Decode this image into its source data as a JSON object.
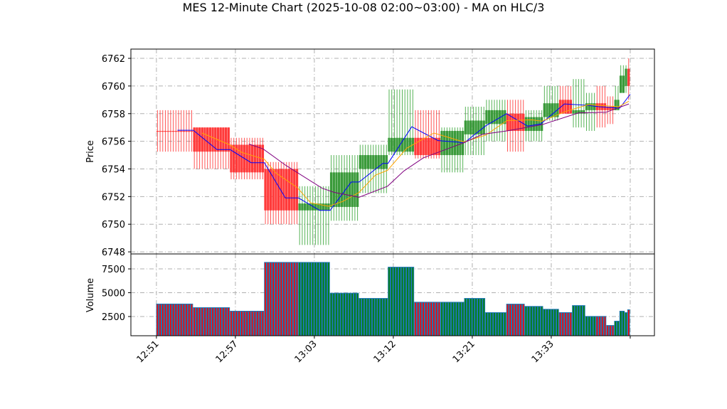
{
  "chart_data": {
    "type": "candlestick",
    "title": "MES 12-Minute Chart (2025-10-08 02:00~03:00) - MA on HLC/3",
    "price_panel": {
      "ylabel": "Price",
      "ylim": [
        6747.85,
        6762.67
      ],
      "yticks": [
        6748,
        6750,
        6752,
        6754,
        6756,
        6758,
        6760,
        6762
      ],
      "grid": true
    },
    "volume_panel": {
      "ylabel": "Volume",
      "ylim": [
        485,
        9070
      ],
      "yticks": [
        2500,
        5000,
        7500
      ],
      "grid": true
    },
    "xaxis": {
      "xlim": [
        -9.7,
        189.2
      ],
      "ticks": [
        {
          "index": 0,
          "label": "12:51"
        },
        {
          "index": 30,
          "label": "12:57"
        },
        {
          "index": 60,
          "label": "13:03"
        },
        {
          "index": 90,
          "label": "13:12"
        },
        {
          "index": 120,
          "label": "13:21"
        },
        {
          "index": 150,
          "label": "13:33"
        },
        {
          "index": 180,
          "label": ""
        }
      ]
    },
    "colors": {
      "up": "#2ca02c",
      "down": "#ff2a2a",
      "up_body": "#3a9a3a",
      "down_body": "#ff3a3a",
      "volume_block": "#1f77b4",
      "volume_up": "#008000",
      "volume_down": "#ff0000",
      "ma_fast": "#0000ff",
      "ma_mid": "#ffa500",
      "ma_slow": "#800080",
      "grid": "#b0b0b0"
    },
    "bars": [
      {
        "start": 0,
        "end": 14,
        "open": 6756.75,
        "high": 6758.25,
        "low": 6755.25,
        "close": 6756.75,
        "dir": "down",
        "volume": 3850
      },
      {
        "start": 14,
        "end": 28,
        "open": 6757.0,
        "high": 6757.0,
        "low": 6754.0,
        "close": 6755.25,
        "dir": "down",
        "volume": 3470
      },
      {
        "start": 28,
        "end": 41,
        "open": 6755.75,
        "high": 6756.25,
        "low": 6753.25,
        "close": 6753.75,
        "dir": "down",
        "volume": 3100
      },
      {
        "start": 41,
        "end": 54,
        "open": 6754.0,
        "high": 6754.5,
        "low": 6750.0,
        "close": 6751.0,
        "dir": "down",
        "volume": 8220
      },
      {
        "start": 54,
        "end": 66,
        "open": 6751.0,
        "high": 6752.75,
        "low": 6748.5,
        "close": 6751.5,
        "dir": "up",
        "volume": 8220
      },
      {
        "start": 66,
        "end": 77,
        "open": 6751.25,
        "high": 6755.0,
        "low": 6750.25,
        "close": 6753.75,
        "dir": "up",
        "volume": 4990
      },
      {
        "start": 77,
        "end": 88,
        "open": 6754.0,
        "high": 6755.75,
        "low": 6752.25,
        "close": 6755.0,
        "dir": "up",
        "volume": 4440
      },
      {
        "start": 88,
        "end": 98,
        "open": 6755.25,
        "high": 6759.75,
        "low": 6755.0,
        "close": 6756.25,
        "dir": "up",
        "volume": 7720
      },
      {
        "start": 98,
        "end": 108,
        "open": 6756.25,
        "high": 6758.25,
        "low": 6754.75,
        "close": 6755.0,
        "dir": "down",
        "volume": 4040
      },
      {
        "start": 108,
        "end": 117,
        "open": 6755.0,
        "high": 6757.0,
        "low": 6753.75,
        "close": 6756.75,
        "dir": "up",
        "volume": 4040
      },
      {
        "start": 117,
        "end": 125,
        "open": 6756.5,
        "high": 6758.5,
        "low": 6755.0,
        "close": 6757.5,
        "dir": "up",
        "volume": 4440
      },
      {
        "start": 125,
        "end": 133,
        "open": 6757.25,
        "high": 6759.0,
        "low": 6756.0,
        "close": 6758.25,
        "dir": "up",
        "volume": 2950
      },
      {
        "start": 133,
        "end": 140,
        "open": 6758.0,
        "high": 6759.0,
        "low": 6755.25,
        "close": 6756.75,
        "dir": "down",
        "volume": 3840
      },
      {
        "start": 140,
        "end": 147,
        "open": 6756.75,
        "high": 6758.25,
        "low": 6756.0,
        "close": 6757.75,
        "dir": "up",
        "volume": 3600
      },
      {
        "start": 147,
        "end": 153,
        "open": 6757.75,
        "high": 6760.0,
        "low": 6757.5,
        "close": 6758.75,
        "dir": "up",
        "volume": 3300
      },
      {
        "start": 153,
        "end": 158,
        "open": 6759.0,
        "high": 6760.0,
        "low": 6758.0,
        "close": 6758.0,
        "dir": "down",
        "volume": 2950
      },
      {
        "start": 158,
        "end": 163,
        "open": 6758.0,
        "high": 6760.5,
        "low": 6757.0,
        "close": 6758.25,
        "dir": "up",
        "volume": 3690
      },
      {
        "start": 163,
        "end": 167,
        "open": 6758.25,
        "high": 6759.5,
        "low": 6756.75,
        "close": 6758.75,
        "dir": "up",
        "volume": 2550
      },
      {
        "start": 167,
        "end": 171,
        "open": 6758.75,
        "high": 6760.0,
        "low": 6757.0,
        "close": 6758.25,
        "dir": "down",
        "volume": 2550
      },
      {
        "start": 171,
        "end": 174,
        "open": 6758.5,
        "high": 6759.25,
        "low": 6757.25,
        "close": 6758.25,
        "dir": "down",
        "volume": 1600
      },
      {
        "start": 174,
        "end": 176,
        "open": 6758.25,
        "high": 6760.0,
        "low": 6758.25,
        "close": 6759.0,
        "dir": "up",
        "volume": 2050
      },
      {
        "start": 176,
        "end": 178,
        "open": 6759.5,
        "high": 6761.5,
        "low": 6759.5,
        "close": 6760.75,
        "dir": "up",
        "volume": 3100
      },
      {
        "start": 178,
        "end": 179,
        "open": 6760.0,
        "high": 6761.5,
        "low": 6759.5,
        "close": 6761.25,
        "dir": "up",
        "volume": 2950
      },
      {
        "start": 179,
        "end": 180,
        "open": 6761.25,
        "high": 6762.0,
        "low": 6759.0,
        "close": 6760.0,
        "dir": "down",
        "volume": 3250
      }
    ],
    "ma_lines": [
      {
        "color": "#0000ff",
        "points": [
          [
            8,
            6756.8
          ],
          [
            14,
            6756.8
          ],
          [
            23,
            6755.4
          ],
          [
            28,
            6755.4
          ],
          [
            36,
            6754.45
          ],
          [
            41,
            6754.45
          ],
          [
            49,
            6751.9
          ],
          [
            54,
            6751.9
          ],
          [
            62,
            6751.0
          ],
          [
            66,
            6751.0
          ],
          [
            74,
            6753.05
          ],
          [
            77,
            6753.05
          ],
          [
            86,
            6754.4
          ],
          [
            88,
            6754.4
          ],
          [
            97,
            6757.05
          ],
          [
            107,
            6756.05
          ],
          [
            117,
            6755.9
          ],
          [
            125,
            6757.1
          ],
          [
            133,
            6758.0
          ],
          [
            141,
            6757.1
          ],
          [
            146,
            6757.25
          ],
          [
            155,
            6758.7
          ],
          [
            164,
            6758.6
          ],
          [
            168,
            6758.5
          ],
          [
            176,
            6758.4
          ],
          [
            180,
            6759.4
          ]
        ]
      },
      {
        "color": "#ffa500",
        "points": [
          [
            17.3,
            6756.6
          ],
          [
            27.8,
            6755.75
          ],
          [
            32.4,
            6755.2
          ],
          [
            41,
            6754.7
          ],
          [
            45.4,
            6753.7
          ],
          [
            53.5,
            6752.65
          ],
          [
            58.6,
            6751.55
          ],
          [
            65.4,
            6751.3
          ],
          [
            70.8,
            6751.65
          ],
          [
            77,
            6752.3
          ],
          [
            83.2,
            6753.55
          ],
          [
            87.8,
            6753.9
          ],
          [
            95.1,
            6755.5
          ],
          [
            105.4,
            6756.6
          ],
          [
            116.8,
            6755.95
          ],
          [
            125.1,
            6756.45
          ],
          [
            133.2,
            6757.5
          ],
          [
            142.7,
            6757.55
          ],
          [
            146.5,
            6757.45
          ],
          [
            155.4,
            6758.15
          ],
          [
            164,
            6758.65
          ],
          [
            175.7,
            6758.5
          ],
          [
            179.5,
            6758.9
          ]
        ]
      },
      {
        "color": "#800080",
        "points": [
          [
            35.1,
            6755.8
          ],
          [
            40.5,
            6755.45
          ],
          [
            49.2,
            6754.25
          ],
          [
            63,
            6752.6
          ],
          [
            67.6,
            6752.3
          ],
          [
            77,
            6751.95
          ],
          [
            87.8,
            6752.75
          ],
          [
            94,
            6753.85
          ],
          [
            101.4,
            6754.8
          ],
          [
            116.8,
            6755.9
          ],
          [
            123.8,
            6756.5
          ],
          [
            133.2,
            6756.75
          ],
          [
            146.5,
            6757.2
          ],
          [
            160.3,
            6758.05
          ],
          [
            170.8,
            6758.1
          ],
          [
            179.5,
            6758.7
          ]
        ]
      }
    ]
  }
}
